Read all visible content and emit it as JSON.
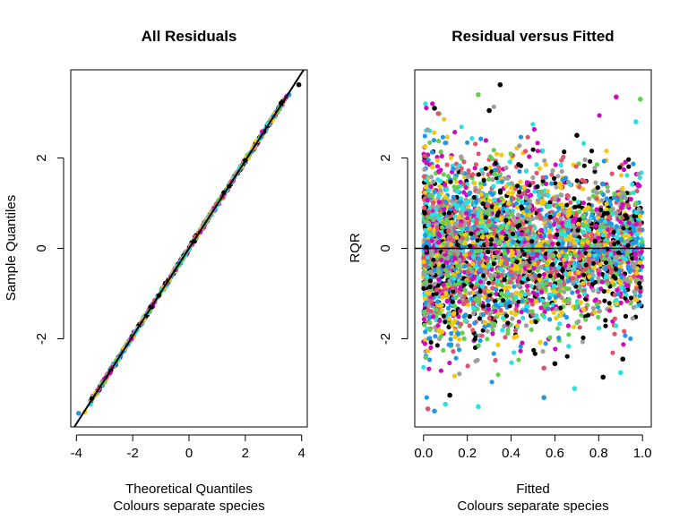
{
  "chart_data": [
    {
      "type": "scatter",
      "title": "All Residuals",
      "xlabel": "Theoretical Quantiles",
      "xlabel2": "Colours separate species",
      "ylabel": "Sample Quantiles",
      "xlim": [
        -4.2,
        4.2
      ],
      "ylim": [
        -3.95,
        3.95
      ],
      "x_ticks": [
        -4,
        -2,
        0,
        2,
        4
      ],
      "x_tick_labels": [
        "-4",
        "-2",
        "0",
        "2",
        "4"
      ],
      "y_ticks": [
        -2,
        0,
        2
      ],
      "y_tick_labels": [
        "-2",
        "0",
        "2"
      ],
      "reference_line": {
        "intercept": 0,
        "slope": 0.97,
        "color": "#000000"
      },
      "points": [
        {
          "x": -3.92,
          "y": -3.65,
          "c": 3
        },
        {
          "x": -3.7,
          "y": -3.62,
          "c": 6
        },
        {
          "x": -3.5,
          "y": -3.45,
          "c": 4
        },
        {
          "x": -3.2,
          "y": -3.1,
          "c": 1
        },
        {
          "x": -3.0,
          "y": -2.95,
          "c": 2
        },
        {
          "x": -2.8,
          "y": -2.75,
          "c": 5
        },
        {
          "x": -2.6,
          "y": -2.55,
          "c": 3
        },
        {
          "x": -2.3,
          "y": -2.22,
          "c": 6
        },
        {
          "x": -2.05,
          "y": -2.0,
          "c": 5
        },
        {
          "x": -1.9,
          "y": -1.85,
          "c": 4
        },
        {
          "x": -1.6,
          "y": -1.56,
          "c": 6
        },
        {
          "x": -1.4,
          "y": -1.38,
          "c": 2
        },
        {
          "x": 1.5,
          "y": 1.48,
          "c": 1
        },
        {
          "x": 1.8,
          "y": 1.77,
          "c": 4
        },
        {
          "x": 2.1,
          "y": 2.06,
          "c": 2
        },
        {
          "x": 2.4,
          "y": 2.37,
          "c": 6
        },
        {
          "x": 2.6,
          "y": 2.58,
          "c": 5
        },
        {
          "x": 2.8,
          "y": 2.75,
          "c": 4
        },
        {
          "x": 3.0,
          "y": 2.92,
          "c": 3
        },
        {
          "x": 3.2,
          "y": 3.1,
          "c": 2
        },
        {
          "x": 3.4,
          "y": 3.3,
          "c": 1
        },
        {
          "x": 3.55,
          "y": 3.4,
          "c": 3
        },
        {
          "x": 3.9,
          "y": 3.62,
          "c": 0
        }
      ]
    },
    {
      "type": "scatter",
      "title": "Residual versus Fitted",
      "xlabel": "Fitted",
      "xlabel2": "Colours separate species",
      "ylabel": "RQR",
      "xlim": [
        -0.04,
        1.04
      ],
      "ylim": [
        -3.95,
        3.95
      ],
      "x_ticks": [
        0,
        0.2,
        0.4,
        0.6,
        0.8,
        1
      ],
      "x_tick_labels": [
        "0.0",
        "0.2",
        "0.4",
        "0.6",
        "0.8",
        "1.0"
      ],
      "y_ticks": [
        -2,
        0,
        2
      ],
      "y_tick_labels": [
        "-2",
        "0",
        "2"
      ],
      "reference_line": {
        "intercept": 0,
        "slope": 0,
        "color": "#000000"
      },
      "points": [
        {
          "x": 0.35,
          "y": 3.62,
          "c": 0
        },
        {
          "x": 0.25,
          "y": 3.4,
          "c": 2
        },
        {
          "x": 0.88,
          "y": 3.35,
          "c": 5
        },
        {
          "x": 0.99,
          "y": 3.3,
          "c": 2
        },
        {
          "x": 0.05,
          "y": 3.1,
          "c": 0
        },
        {
          "x": 0.3,
          "y": 3.05,
          "c": 0
        },
        {
          "x": 0.97,
          "y": 2.8,
          "c": 4
        },
        {
          "x": 0.7,
          "y": 2.5,
          "c": 0
        },
        {
          "x": 0.6,
          "y": -2.55,
          "c": 0
        },
        {
          "x": 0.91,
          "y": -2.45,
          "c": 0
        },
        {
          "x": 0.9,
          "y": -2.75,
          "c": 4
        },
        {
          "x": 0.82,
          "y": -2.85,
          "c": 0
        },
        {
          "x": 0.55,
          "y": -2.65,
          "c": 1
        },
        {
          "x": 0.69,
          "y": -3.1,
          "c": 4
        },
        {
          "x": 0.55,
          "y": -3.3,
          "c": 3
        },
        {
          "x": 0.25,
          "y": -3.5,
          "c": 4
        },
        {
          "x": 0.05,
          "y": -3.6,
          "c": 3
        },
        {
          "x": 0.02,
          "y": -3.55,
          "c": 1
        },
        {
          "x": 0.1,
          "y": -3.45,
          "c": 4
        },
        {
          "x": 0.12,
          "y": -3.25,
          "c": 0
        }
      ],
      "dense_cloud": "many thousands of overlapping residual points spread across the full fitted range, roughly between -3 and 3"
    }
  ],
  "palette": [
    "#000000",
    "#DF536B",
    "#61D04F",
    "#2297E6",
    "#28E2E5",
    "#CD0BBC",
    "#F5C710",
    "#9E9E9E"
  ]
}
